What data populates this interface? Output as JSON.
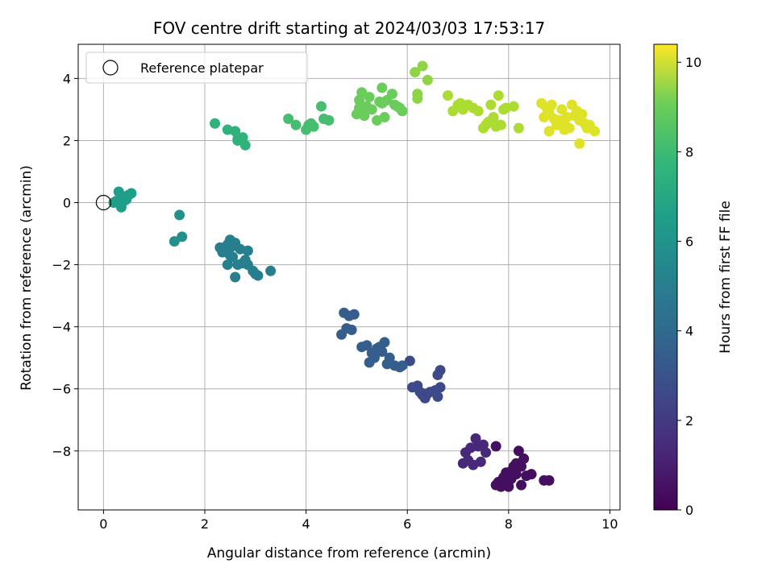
{
  "chart_data": {
    "type": "scatter",
    "title": "FOV centre drift starting at 2024/03/03 17:53:17",
    "xlabel": "Angular distance from reference (arcmin)",
    "ylabel": "Rotation from reference (arcmin)",
    "xlim": [
      -0.5,
      10.2
    ],
    "ylim": [
      -9.9,
      5.1
    ],
    "xticks": [
      0,
      2,
      4,
      6,
      8,
      10
    ],
    "yticks": [
      4,
      2,
      0,
      -2,
      -4,
      -6,
      -8
    ],
    "xtick_labels": [
      "0",
      "2",
      "4",
      "6",
      "8",
      "10"
    ],
    "ytick_labels": [
      "4",
      "2",
      "0",
      "−2",
      "−4",
      "−6",
      "−8"
    ],
    "grid": true,
    "legend": {
      "position": "top-left",
      "entries": [
        {
          "label": "Reference platepar",
          "marker": "open-circle"
        }
      ]
    },
    "reference_point": {
      "x": 0,
      "y": 0
    },
    "colorbar": {
      "label": "Hours from first FF file",
      "colormap": "viridis",
      "range": [
        0,
        10.4
      ],
      "ticks": [
        0,
        2,
        4,
        6,
        8,
        10
      ],
      "tick_labels": [
        "0",
        "2",
        "4",
        "6",
        "8",
        "10"
      ]
    },
    "series": [
      {
        "x": [
          7.15,
          7.25,
          7.35,
          7.5,
          7.2,
          7.3,
          7.45,
          7.1,
          7.55,
          7.4
        ],
        "y": [
          -8.05,
          -7.9,
          -7.6,
          -7.8,
          -8.3,
          -8.45,
          -8.35,
          -8.4,
          -8.05,
          -7.85
        ],
        "t": 1.2
      },
      {
        "x": [
          7.75,
          7.85,
          7.95,
          8.05,
          8.15,
          8.25,
          8.35,
          7.8,
          7.9,
          8.0,
          8.1,
          8.2,
          8.3,
          8.45,
          8.7,
          8.8,
          7.95,
          8.25,
          8.15,
          7.75,
          8.05
        ],
        "y": [
          -9.1,
          -9.15,
          -9.05,
          -8.9,
          -8.75,
          -9.1,
          -8.8,
          -9.0,
          -8.85,
          -9.15,
          -8.5,
          -8.0,
          -8.25,
          -8.75,
          -8.95,
          -8.95,
          -8.7,
          -8.5,
          -8.4,
          -7.85,
          -8.65
        ],
        "t": 0.4
      },
      {
        "x": [
          6.1,
          6.2,
          6.3,
          6.35,
          6.45,
          6.55,
          6.6,
          6.65,
          6.05,
          6.25,
          6.3,
          6.4,
          6.65,
          6.6
        ],
        "y": [
          -5.95,
          -5.9,
          -6.15,
          -6.3,
          -6.1,
          -6.05,
          -6.25,
          -5.95,
          -5.1,
          -6.1,
          -6.2,
          -6.15,
          -5.4,
          -5.55
        ],
        "t": 2.3
      },
      {
        "x": [
          4.7,
          4.8,
          4.9,
          4.75,
          4.85,
          4.95,
          5.1,
          5.2,
          5.3,
          5.4,
          5.45,
          5.55,
          5.35,
          5.25,
          5.6,
          5.65,
          5.75,
          5.85,
          5.9,
          5.5,
          5.35
        ],
        "y": [
          -4.25,
          -4.05,
          -4.1,
          -3.55,
          -3.65,
          -3.6,
          -4.65,
          -4.6,
          -4.85,
          -4.7,
          -4.65,
          -4.5,
          -5.0,
          -5.15,
          -5.2,
          -5.0,
          -5.25,
          -5.3,
          -5.25,
          -4.8,
          -4.95
        ],
        "t": 3.1
      },
      {
        "x": [
          2.3,
          2.4,
          2.45,
          2.5,
          2.55,
          2.6,
          2.65,
          2.7,
          2.8,
          2.85,
          2.95,
          3.0,
          3.05,
          2.35,
          2.45,
          2.55,
          2.6,
          2.75,
          2.85,
          3.3,
          2.5
        ],
        "y": [
          -1.45,
          -1.5,
          -1.35,
          -1.2,
          -1.4,
          -1.3,
          -2.0,
          -1.5,
          -1.85,
          -1.55,
          -2.2,
          -2.3,
          -2.35,
          -1.6,
          -2.0,
          -1.75,
          -2.4,
          -1.95,
          -2.0,
          -2.2,
          -1.7
        ],
        "t": 4.5
      },
      {
        "x": [
          1.4,
          1.5,
          1.55
        ],
        "y": [
          -1.25,
          -0.4,
          -1.1
        ],
        "t": 5.2
      },
      {
        "x": [
          0.25,
          0.3,
          0.35,
          0.4,
          0.45,
          0.5,
          0.55,
          0.3,
          0.35,
          0.2,
          0.4
        ],
        "y": [
          0.05,
          0.35,
          0.1,
          0.2,
          0.1,
          0.25,
          0.3,
          0.0,
          -0.15,
          0.0,
          0.05
        ],
        "t": 5.8
      },
      {
        "x": [
          2.2,
          2.45,
          2.6,
          2.65,
          2.75,
          2.8,
          2.65
        ],
        "y": [
          2.55,
          2.35,
          2.3,
          2.05,
          2.1,
          1.85,
          2.0
        ],
        "t": 6.7
      },
      {
        "x": [
          3.65,
          3.8,
          4.0,
          4.05,
          4.1,
          4.15,
          4.3,
          4.35,
          4.45
        ],
        "y": [
          2.7,
          2.5,
          2.35,
          2.5,
          2.55,
          2.45,
          3.1,
          2.7,
          2.65
        ],
        "t": 7.3
      },
      {
        "x": [
          5.0,
          5.05,
          5.1,
          5.15,
          5.2,
          5.25,
          5.3,
          5.4,
          5.45,
          5.5,
          5.55,
          5.6,
          5.7,
          5.75,
          5.8,
          5.85,
          5.9,
          5.05,
          5.15,
          5.5
        ],
        "y": [
          2.85,
          3.05,
          3.55,
          2.8,
          3.1,
          3.4,
          3.0,
          2.65,
          3.25,
          3.7,
          2.75,
          3.3,
          3.5,
          3.15,
          3.1,
          3.05,
          2.95,
          3.3,
          3.0,
          3.2
        ],
        "t": 8.0
      },
      {
        "x": [
          6.15,
          6.2,
          6.3,
          6.4,
          6.2
        ],
        "y": [
          4.2,
          3.5,
          4.4,
          3.95,
          3.35
        ],
        "t": 8.6
      },
      {
        "x": [
          6.8,
          6.9,
          7.0,
          7.1,
          7.2,
          7.3,
          7.4,
          7.5,
          7.6,
          7.65,
          7.7,
          7.75,
          7.8,
          7.85,
          7.9,
          7.95,
          8.1,
          8.2,
          7.55,
          7.7,
          7.05
        ],
        "y": [
          3.45,
          2.95,
          3.15,
          3.0,
          3.15,
          3.05,
          2.95,
          2.4,
          2.6,
          3.15,
          2.65,
          2.45,
          3.45,
          2.5,
          3.0,
          3.05,
          3.1,
          2.4,
          2.5,
          2.75,
          3.2
        ],
        "t": 9.1
      },
      {
        "x": [
          8.65,
          8.7,
          8.75,
          8.8,
          8.85,
          8.9,
          8.95,
          9.0,
          9.05,
          9.1,
          9.15,
          9.2,
          9.25,
          9.3,
          9.35,
          9.4,
          9.45,
          9.5,
          9.55,
          9.6,
          9.7,
          9.4,
          8.8,
          9.1
        ],
        "y": [
          3.2,
          2.75,
          3.05,
          2.3,
          3.15,
          2.7,
          2.5,
          2.65,
          3.0,
          2.35,
          2.75,
          2.4,
          3.15,
          2.8,
          2.95,
          1.9,
          2.85,
          2.55,
          2.4,
          2.5,
          2.3,
          2.65,
          2.9,
          2.55
        ],
        "t": 9.9
      }
    ]
  }
}
